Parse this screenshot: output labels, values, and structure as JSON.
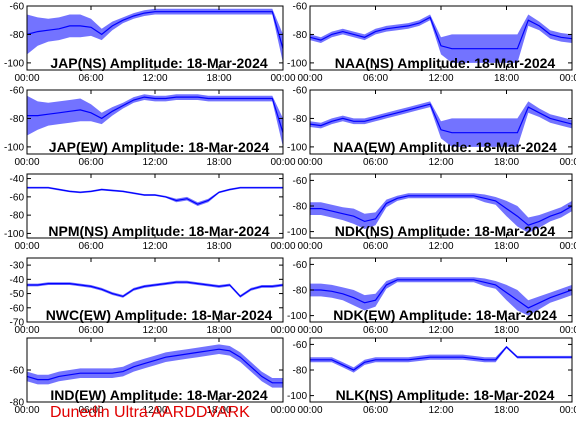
{
  "footer": "Dunedin Ultra AARDDVARK",
  "colors": {
    "trace": "#0000ff",
    "axis": "#000000",
    "footer": "#e00000",
    "background": "#ffffff"
  },
  "x_ticks": [
    "00:00",
    "06:00",
    "12:00",
    "18:00",
    "00:00"
  ],
  "chart_data": [
    {
      "type": "line",
      "title": "JAP(NS) Amplitude: 18-Mar-2024",
      "xlim": [
        0,
        24
      ],
      "ylim": [
        -105,
        -60
      ],
      "yticks": [
        -100,
        -80,
        -60
      ],
      "x_hours": [
        0,
        1,
        2,
        3,
        4,
        5,
        6,
        7,
        8,
        9,
        10,
        11,
        12,
        13,
        14,
        15,
        16,
        17,
        18,
        19,
        20,
        21,
        22,
        23,
        24
      ],
      "values": [
        -80,
        -78,
        -77,
        -76,
        -74,
        -74,
        -75,
        -80,
        -74,
        -70,
        -67,
        -65,
        -64,
        -64,
        -64,
        -64,
        -64,
        -64,
        -64,
        -64,
        -64,
        -64,
        -64,
        -64,
        -90
      ],
      "band": [
        14,
        10,
        8,
        8,
        8,
        8,
        6,
        4,
        3,
        2,
        2,
        2,
        2,
        2,
        2,
        2,
        2,
        2,
        2,
        2,
        2,
        2,
        2,
        2,
        10
      ]
    },
    {
      "type": "line",
      "title": "NAA(NS) Amplitude: 18-Mar-2024",
      "xlim": [
        0,
        24
      ],
      "ylim": [
        -105,
        -60
      ],
      "yticks": [
        -100,
        -80,
        -60
      ],
      "x_hours": [
        0,
        1,
        2,
        3,
        4,
        5,
        6,
        7,
        8,
        9,
        10,
        11,
        12,
        13,
        14,
        15,
        16,
        17,
        18,
        19,
        20,
        21,
        22,
        23,
        24
      ],
      "values": [
        -82,
        -84,
        -80,
        -78,
        -80,
        -82,
        -78,
        -76,
        -75,
        -74,
        -72,
        -68,
        -88,
        -90,
        -90,
        -90,
        -90,
        -90,
        -90,
        -90,
        -70,
        -74,
        -80,
        -82,
        -83
      ],
      "band": [
        2,
        2,
        2,
        2,
        2,
        2,
        2,
        2,
        2,
        2,
        2,
        2,
        6,
        10,
        10,
        10,
        10,
        10,
        10,
        10,
        4,
        3,
        3,
        3,
        3
      ]
    },
    {
      "type": "line",
      "title": "JAP(EW) Amplitude: 18-Mar-2024",
      "xlim": [
        0,
        24
      ],
      "ylim": [
        -105,
        -60
      ],
      "yticks": [
        -100,
        -80,
        -60
      ],
      "x_hours": [
        0,
        1,
        2,
        3,
        4,
        5,
        6,
        7,
        8,
        9,
        10,
        11,
        12,
        13,
        14,
        15,
        16,
        17,
        18,
        19,
        20,
        21,
        22,
        23,
        24
      ],
      "values": [
        -78,
        -78,
        -77,
        -76,
        -75,
        -74,
        -76,
        -80,
        -75,
        -71,
        -67,
        -65,
        -66,
        -66,
        -65,
        -65,
        -65,
        -66,
        -66,
        -66,
        -66,
        -66,
        -66,
        -66,
        -90
      ],
      "band": [
        14,
        10,
        8,
        8,
        8,
        8,
        6,
        4,
        3,
        2,
        2,
        2,
        2,
        2,
        2,
        2,
        2,
        2,
        2,
        2,
        2,
        2,
        2,
        2,
        10
      ]
    },
    {
      "type": "line",
      "title": "NAA(EW) Amplitude: 18-Mar-2024",
      "xlim": [
        0,
        24
      ],
      "ylim": [
        -105,
        -60
      ],
      "yticks": [
        -100,
        -80,
        -60
      ],
      "x_hours": [
        0,
        1,
        2,
        3,
        4,
        5,
        6,
        7,
        8,
        9,
        10,
        11,
        12,
        13,
        14,
        15,
        16,
        17,
        18,
        19,
        20,
        21,
        22,
        23,
        24
      ],
      "values": [
        -84,
        -85,
        -82,
        -80,
        -82,
        -82,
        -80,
        -78,
        -76,
        -74,
        -72,
        -70,
        -88,
        -90,
        -90,
        -90,
        -90,
        -90,
        -90,
        -90,
        -72,
        -76,
        -80,
        -82,
        -84
      ],
      "band": [
        2,
        2,
        2,
        2,
        2,
        2,
        2,
        2,
        2,
        2,
        2,
        2,
        6,
        10,
        10,
        10,
        10,
        10,
        10,
        10,
        4,
        3,
        3,
        3,
        3
      ]
    },
    {
      "type": "line",
      "title": "NPM(NS) Amplitude: 18-Mar-2024",
      "xlim": [
        0,
        24
      ],
      "ylim": [
        -105,
        -35
      ],
      "yticks": [
        -100,
        -80,
        -60,
        -40
      ],
      "x_hours": [
        0,
        1,
        2,
        3,
        4,
        5,
        6,
        7,
        8,
        9,
        10,
        11,
        12,
        13,
        14,
        15,
        16,
        17,
        18,
        19,
        20,
        21,
        22,
        23,
        24
      ],
      "values": [
        -50,
        -50,
        -50,
        -52,
        -54,
        -55,
        -54,
        -52,
        -53,
        -54,
        -56,
        -58,
        -58,
        -60,
        -64,
        -62,
        -68,
        -64,
        -55,
        -52,
        -50,
        -50,
        -50,
        -50,
        -50
      ],
      "band": [
        1,
        1,
        1,
        1,
        1,
        1,
        1,
        1,
        1,
        1,
        1,
        1,
        1,
        1,
        2,
        2,
        2,
        2,
        1,
        1,
        1,
        1,
        1,
        1,
        1
      ]
    },
    {
      "type": "line",
      "title": "NDK(NS) Amplitude: 18-Mar-2024",
      "xlim": [
        0,
        24
      ],
      "ylim": [
        -105,
        -55
      ],
      "yticks": [
        -100,
        -80,
        -60
      ],
      "x_hours": [
        0,
        1,
        2,
        3,
        4,
        5,
        6,
        7,
        8,
        9,
        10,
        11,
        12,
        13,
        14,
        15,
        16,
        17,
        18,
        19,
        20,
        21,
        22,
        23,
        24
      ],
      "values": [
        -82,
        -82,
        -84,
        -86,
        -88,
        -92,
        -90,
        -78,
        -74,
        -72,
        -72,
        -72,
        -72,
        -72,
        -72,
        -72,
        -74,
        -76,
        -82,
        -88,
        -95,
        -92,
        -88,
        -85,
        -80
      ],
      "band": [
        5,
        5,
        5,
        5,
        6,
        6,
        5,
        3,
        2,
        2,
        2,
        2,
        2,
        2,
        2,
        2,
        3,
        3,
        6,
        8,
        6,
        5,
        4,
        4,
        4
      ]
    },
    {
      "type": "line",
      "title": "NWC(EW) Amplitude: 18-Mar-2024",
      "xlim": [
        0,
        24
      ],
      "ylim": [
        -70,
        -25
      ],
      "yticks": [
        -70,
        -60,
        -50,
        -40,
        -30
      ],
      "x_hours": [
        0,
        1,
        2,
        3,
        4,
        5,
        6,
        7,
        8,
        9,
        10,
        11,
        12,
        13,
        14,
        15,
        16,
        17,
        18,
        19,
        20,
        21,
        22,
        23,
        24
      ],
      "values": [
        -44,
        -44,
        -43,
        -43,
        -43,
        -44,
        -45,
        -47,
        -50,
        -52,
        -47,
        -45,
        -44,
        -43,
        -42,
        -42,
        -43,
        -44,
        -45,
        -44,
        -52,
        -47,
        -45,
        -45,
        -44
      ],
      "band": [
        1,
        1,
        1,
        1,
        1,
        1,
        1,
        1,
        1,
        1,
        1,
        1,
        1,
        1,
        1,
        1,
        1,
        1,
        1,
        1,
        1,
        1,
        1,
        1,
        1
      ]
    },
    {
      "type": "line",
      "title": "NDK(EW) Amplitude: 18-Mar-2024",
      "xlim": [
        0,
        24
      ],
      "ylim": [
        -105,
        -55
      ],
      "yticks": [
        -100,
        -80,
        -60
      ],
      "x_hours": [
        0,
        1,
        2,
        3,
        4,
        5,
        6,
        7,
        8,
        9,
        10,
        11,
        12,
        13,
        14,
        15,
        16,
        17,
        18,
        19,
        20,
        21,
        22,
        23,
        24
      ],
      "values": [
        -80,
        -80,
        -81,
        -83,
        -86,
        -90,
        -88,
        -76,
        -72,
        -72,
        -72,
        -72,
        -72,
        -72,
        -72,
        -72,
        -74,
        -76,
        -82,
        -88,
        -94,
        -90,
        -86,
        -83,
        -80
      ],
      "band": [
        5,
        5,
        5,
        5,
        6,
        6,
        5,
        3,
        2,
        2,
        2,
        2,
        2,
        2,
        2,
        2,
        3,
        3,
        6,
        8,
        6,
        5,
        4,
        4,
        4
      ]
    },
    {
      "type": "line",
      "title": "IND(EW) Amplitude: 18-Mar-2024",
      "xlim": [
        0,
        24
      ],
      "ylim": [
        -80,
        -40
      ],
      "yticks": [
        -80,
        -60
      ],
      "x_hours": [
        0,
        1,
        2,
        3,
        4,
        5,
        6,
        7,
        8,
        9,
        10,
        11,
        12,
        13,
        14,
        15,
        16,
        17,
        18,
        19,
        20,
        21,
        22,
        23,
        24
      ],
      "values": [
        -64,
        -66,
        -66,
        -64,
        -63,
        -62,
        -62,
        -62,
        -62,
        -61,
        -58,
        -56,
        -54,
        -52,
        -51,
        -50,
        -49,
        -48,
        -47,
        -48,
        -52,
        -58,
        -64,
        -68,
        -68
      ],
      "band": [
        3,
        3,
        3,
        3,
        3,
        3,
        3,
        3,
        3,
        3,
        3,
        3,
        3,
        3,
        3,
        3,
        3,
        3,
        3,
        3,
        3,
        3,
        3,
        3,
        3
      ]
    },
    {
      "type": "line",
      "title": "NLK(NS) Amplitude: 18-Mar-2024",
      "xlim": [
        0,
        24
      ],
      "ylim": [
        -105,
        -55
      ],
      "yticks": [
        -100,
        -80,
        -60
      ],
      "x_hours": [
        0,
        1,
        2,
        3,
        4,
        5,
        6,
        7,
        8,
        9,
        10,
        11,
        12,
        13,
        14,
        15,
        16,
        17,
        18,
        19,
        20,
        21,
        22,
        23,
        24
      ],
      "values": [
        -72,
        -72,
        -72,
        -76,
        -80,
        -74,
        -72,
        -72,
        -72,
        -72,
        -71,
        -70,
        -70,
        -70,
        -70,
        -71,
        -72,
        -72,
        -62,
        -70,
        -70,
        -70,
        -70,
        -70,
        -70
      ],
      "band": [
        2,
        2,
        2,
        2,
        2,
        2,
        2,
        2,
        2,
        2,
        2,
        2,
        2,
        2,
        2,
        2,
        2,
        2,
        1,
        1,
        1,
        1,
        1,
        1,
        1
      ]
    }
  ]
}
